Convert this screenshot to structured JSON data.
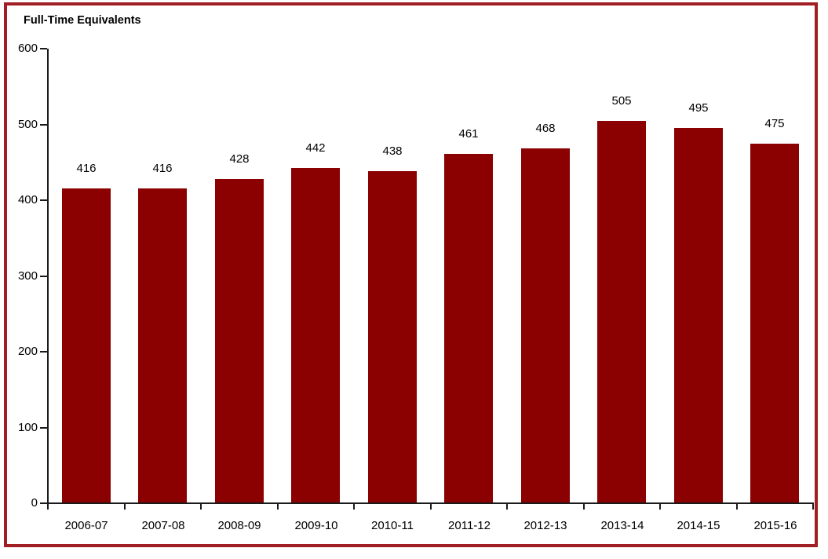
{
  "chart_data": {
    "type": "bar",
    "title": "Full-Time Equivalents",
    "categories": [
      "2006-07",
      "2007-08",
      "2008-09",
      "2009-10",
      "2010-11",
      "2011-12",
      "2012-13",
      "2013-14",
      "2014-15",
      "2015-16"
    ],
    "values": [
      416,
      416,
      428,
      442,
      438,
      461,
      468,
      505,
      495,
      475
    ],
    "xlabel": "",
    "ylabel": "Full-Time Equivalents",
    "ylim": [
      0,
      600
    ],
    "yticks": [
      0,
      100,
      200,
      300,
      400,
      500,
      600
    ],
    "data_labels": true,
    "grid": false,
    "legend": "none",
    "bar_color": "#8B0000",
    "frame_color": "#A01E24",
    "axis_color": "#1a1a1a",
    "text_color": "#000000",
    "background_color": "#ffffff"
  }
}
